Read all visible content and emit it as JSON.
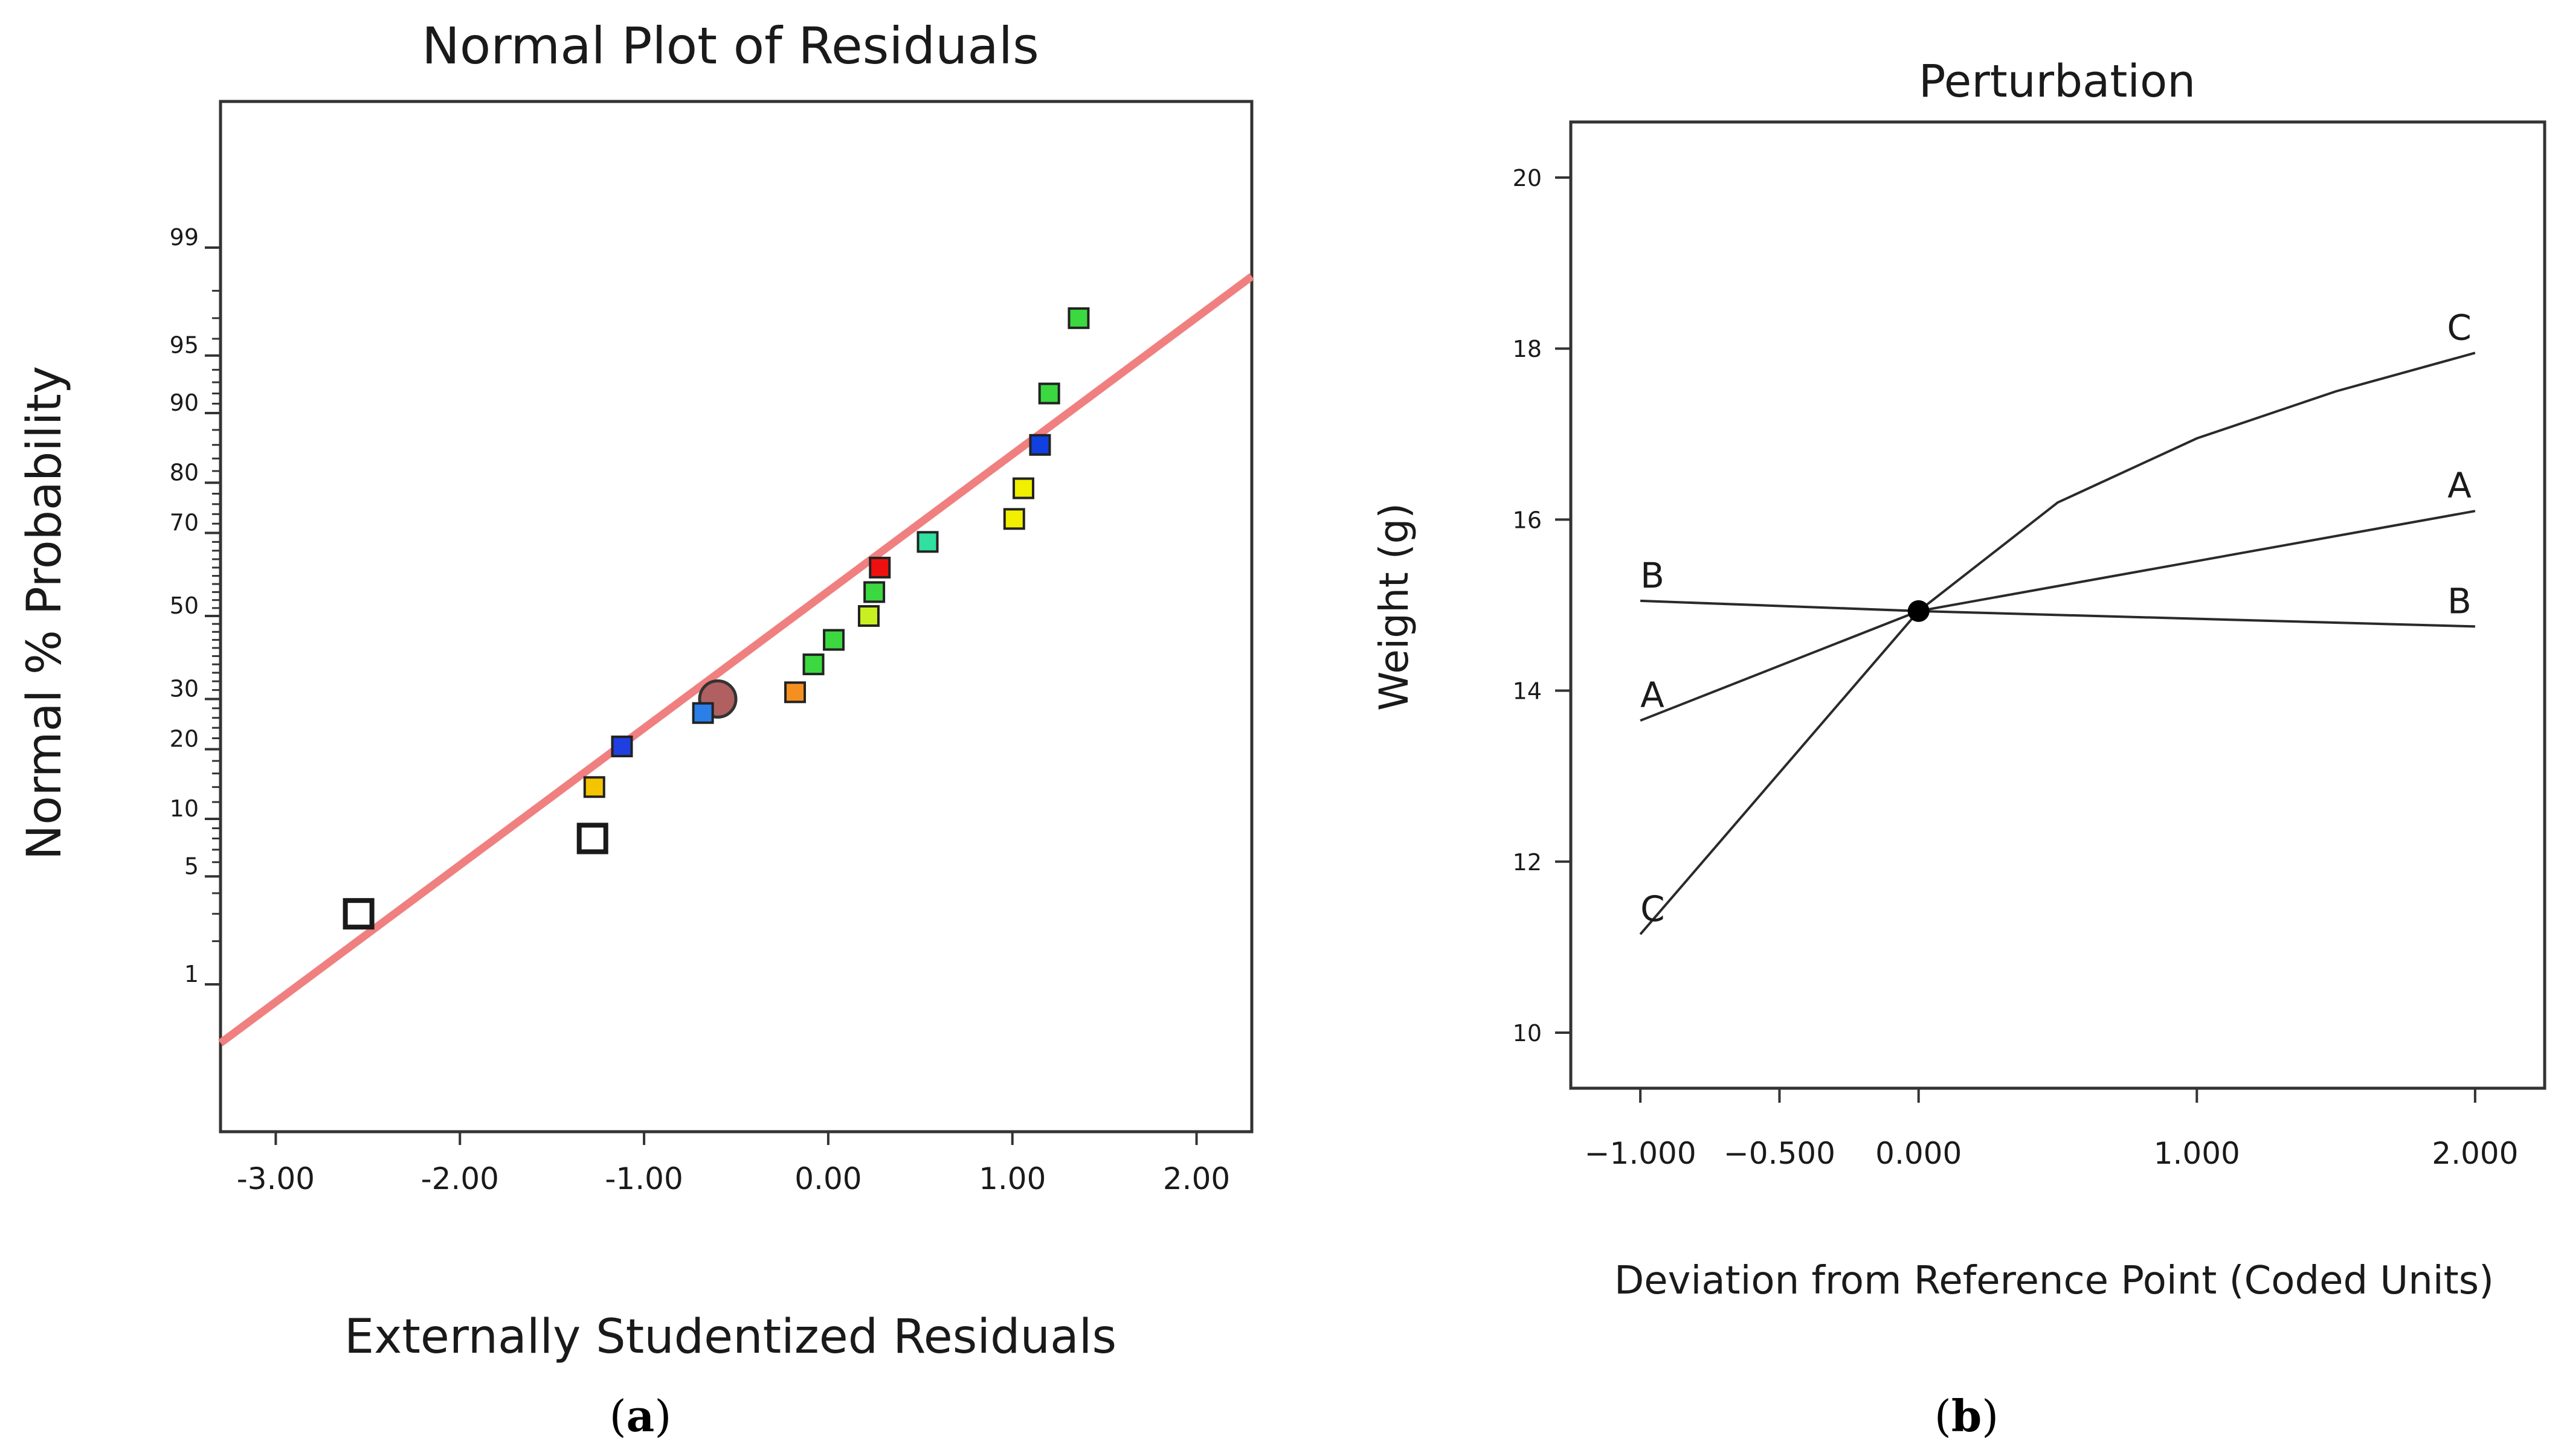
{
  "chart_data": [
    {
      "type": "scatter",
      "panel_label": {
        "open": "(",
        "letter": "a",
        "close": ")"
      },
      "title": "Normal Plot of Residuals",
      "xlabel": "Externally Studentized Residuals",
      "ylabel": "Normal % Probability",
      "xlim": [
        -3.3,
        2.3
      ],
      "xticks": [
        -3.0,
        -2.0,
        -1.0,
        0.0,
        1.0,
        2.0
      ],
      "xtick_labels": [
        "-3.00",
        "-2.00",
        "-1.00",
        "0.00",
        "1.00",
        "2.00"
      ],
      "yticks": [
        1,
        5,
        10,
        20,
        30,
        50,
        70,
        80,
        90,
        95,
        99
      ],
      "ytick_labels": [
        "1",
        "5",
        "10",
        "20",
        "30",
        "50",
        "70",
        "80",
        "90",
        "95",
        "99"
      ],
      "reference_line": {
        "color": "#f08080",
        "points": [
          [
            -3.3,
            0.35
          ],
          [
            2.3,
            98.4
          ]
        ]
      },
      "points": [
        {
          "x": -2.55,
          "y": 3,
          "color": "#ffffff",
          "hollow": true
        },
        {
          "x": -1.28,
          "y": 8,
          "color": "#ffffff",
          "hollow": true
        },
        {
          "x": -1.27,
          "y": 14,
          "color": "#f5c400"
        },
        {
          "x": -1.12,
          "y": 20.5,
          "color": "#1f3fe0"
        },
        {
          "x": -0.6,
          "y": 30,
          "color": "#b06060",
          "highlight": true
        },
        {
          "x": -0.68,
          "y": 27,
          "color": "#2a7fe8"
        },
        {
          "x": -0.18,
          "y": 31.5,
          "color": "#f59020"
        },
        {
          "x": -0.08,
          "y": 38,
          "color": "#3cd840"
        },
        {
          "x": 0.03,
          "y": 44,
          "color": "#3cd840"
        },
        {
          "x": 0.22,
          "y": 50,
          "color": "#c8f020"
        },
        {
          "x": 0.25,
          "y": 56,
          "color": "#3cd840"
        },
        {
          "x": 0.28,
          "y": 62,
          "color": "#ee1010"
        },
        {
          "x": 0.54,
          "y": 68,
          "color": "#30e0a0"
        },
        {
          "x": 1.01,
          "y": 73,
          "color": "#f0f000"
        },
        {
          "x": 1.06,
          "y": 79,
          "color": "#f0f000"
        },
        {
          "x": 1.15,
          "y": 86,
          "color": "#1040e0"
        },
        {
          "x": 1.2,
          "y": 92,
          "color": "#3cd840"
        },
        {
          "x": 1.36,
          "y": 97,
          "color": "#3cd840"
        }
      ]
    },
    {
      "type": "line",
      "panel_label": {
        "open": "(",
        "letter": "b",
        "close": ")"
      },
      "title": "Perturbation",
      "xlabel": "Deviation from Reference Point (Coded Units)",
      "ylabel": "Weight (g)",
      "xlim": [
        -1.25,
        2.25
      ],
      "ylim": [
        9.35,
        20.65
      ],
      "xticks": [
        -1.0,
        -0.5,
        0.0,
        1.0,
        2.0
      ],
      "xtick_labels": [
        "−1.000",
        "−0.500",
        "0.000",
        "1.000",
        "2.000"
      ],
      "yticks": [
        10,
        12,
        14,
        16,
        18,
        20
      ],
      "ytick_labels": [
        "10",
        "12",
        "14",
        "16",
        "18",
        "20"
      ],
      "reference_point": {
        "x": 0,
        "y": 14.93
      },
      "series": [
        {
          "name": "A",
          "x": [
            -1,
            0,
            2
          ],
          "y": [
            13.65,
            14.93,
            16.1
          ],
          "label_start": "A",
          "label_end": "A"
        },
        {
          "name": "B",
          "x": [
            -1,
            0,
            2
          ],
          "y": [
            15.05,
            14.93,
            14.75
          ],
          "label_start": "B",
          "label_end": "B"
        },
        {
          "name": "C",
          "x": [
            -1,
            0,
            0.5,
            1,
            1.5,
            2
          ],
          "y": [
            11.15,
            14.93,
            16.2,
            16.95,
            17.5,
            17.95
          ],
          "label_start": "C",
          "label_end": "C"
        }
      ]
    }
  ]
}
